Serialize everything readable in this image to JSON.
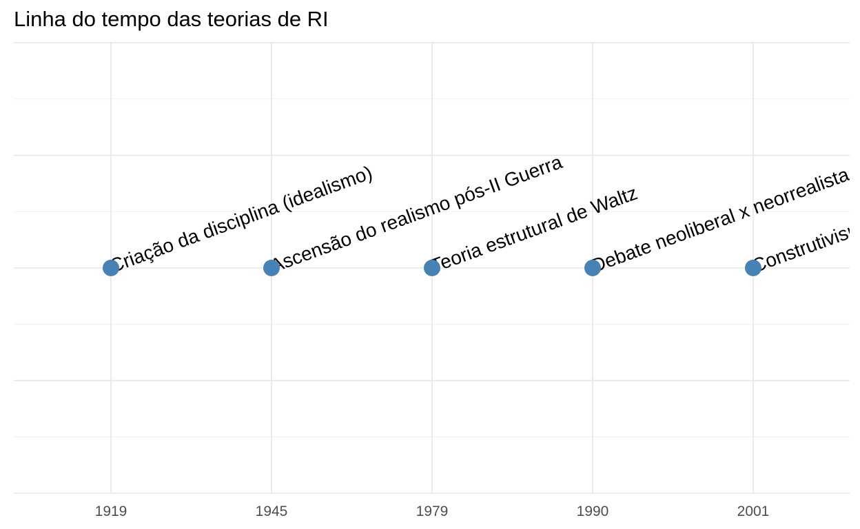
{
  "chart_data": {
    "type": "scatter",
    "title": "Linha do tempo das teorias de RI",
    "xlabel": "",
    "ylabel": "",
    "x": [
      "1919",
      "1945",
      "1979",
      "1990",
      "2001"
    ],
    "y": [
      0,
      0,
      0,
      0,
      0
    ],
    "labels": [
      "Criação da disciplina (idealismo)",
      "Ascensão do realismo pós-II Guerra",
      "Teoria estrutural de Waltz",
      "Debate neoliberal x neorrealista",
      "Construtivismo"
    ],
    "x_axis_type": "discrete",
    "ylim": [
      -1,
      1
    ],
    "grid": true,
    "legend": "none",
    "point_color": "#4682b4"
  }
}
